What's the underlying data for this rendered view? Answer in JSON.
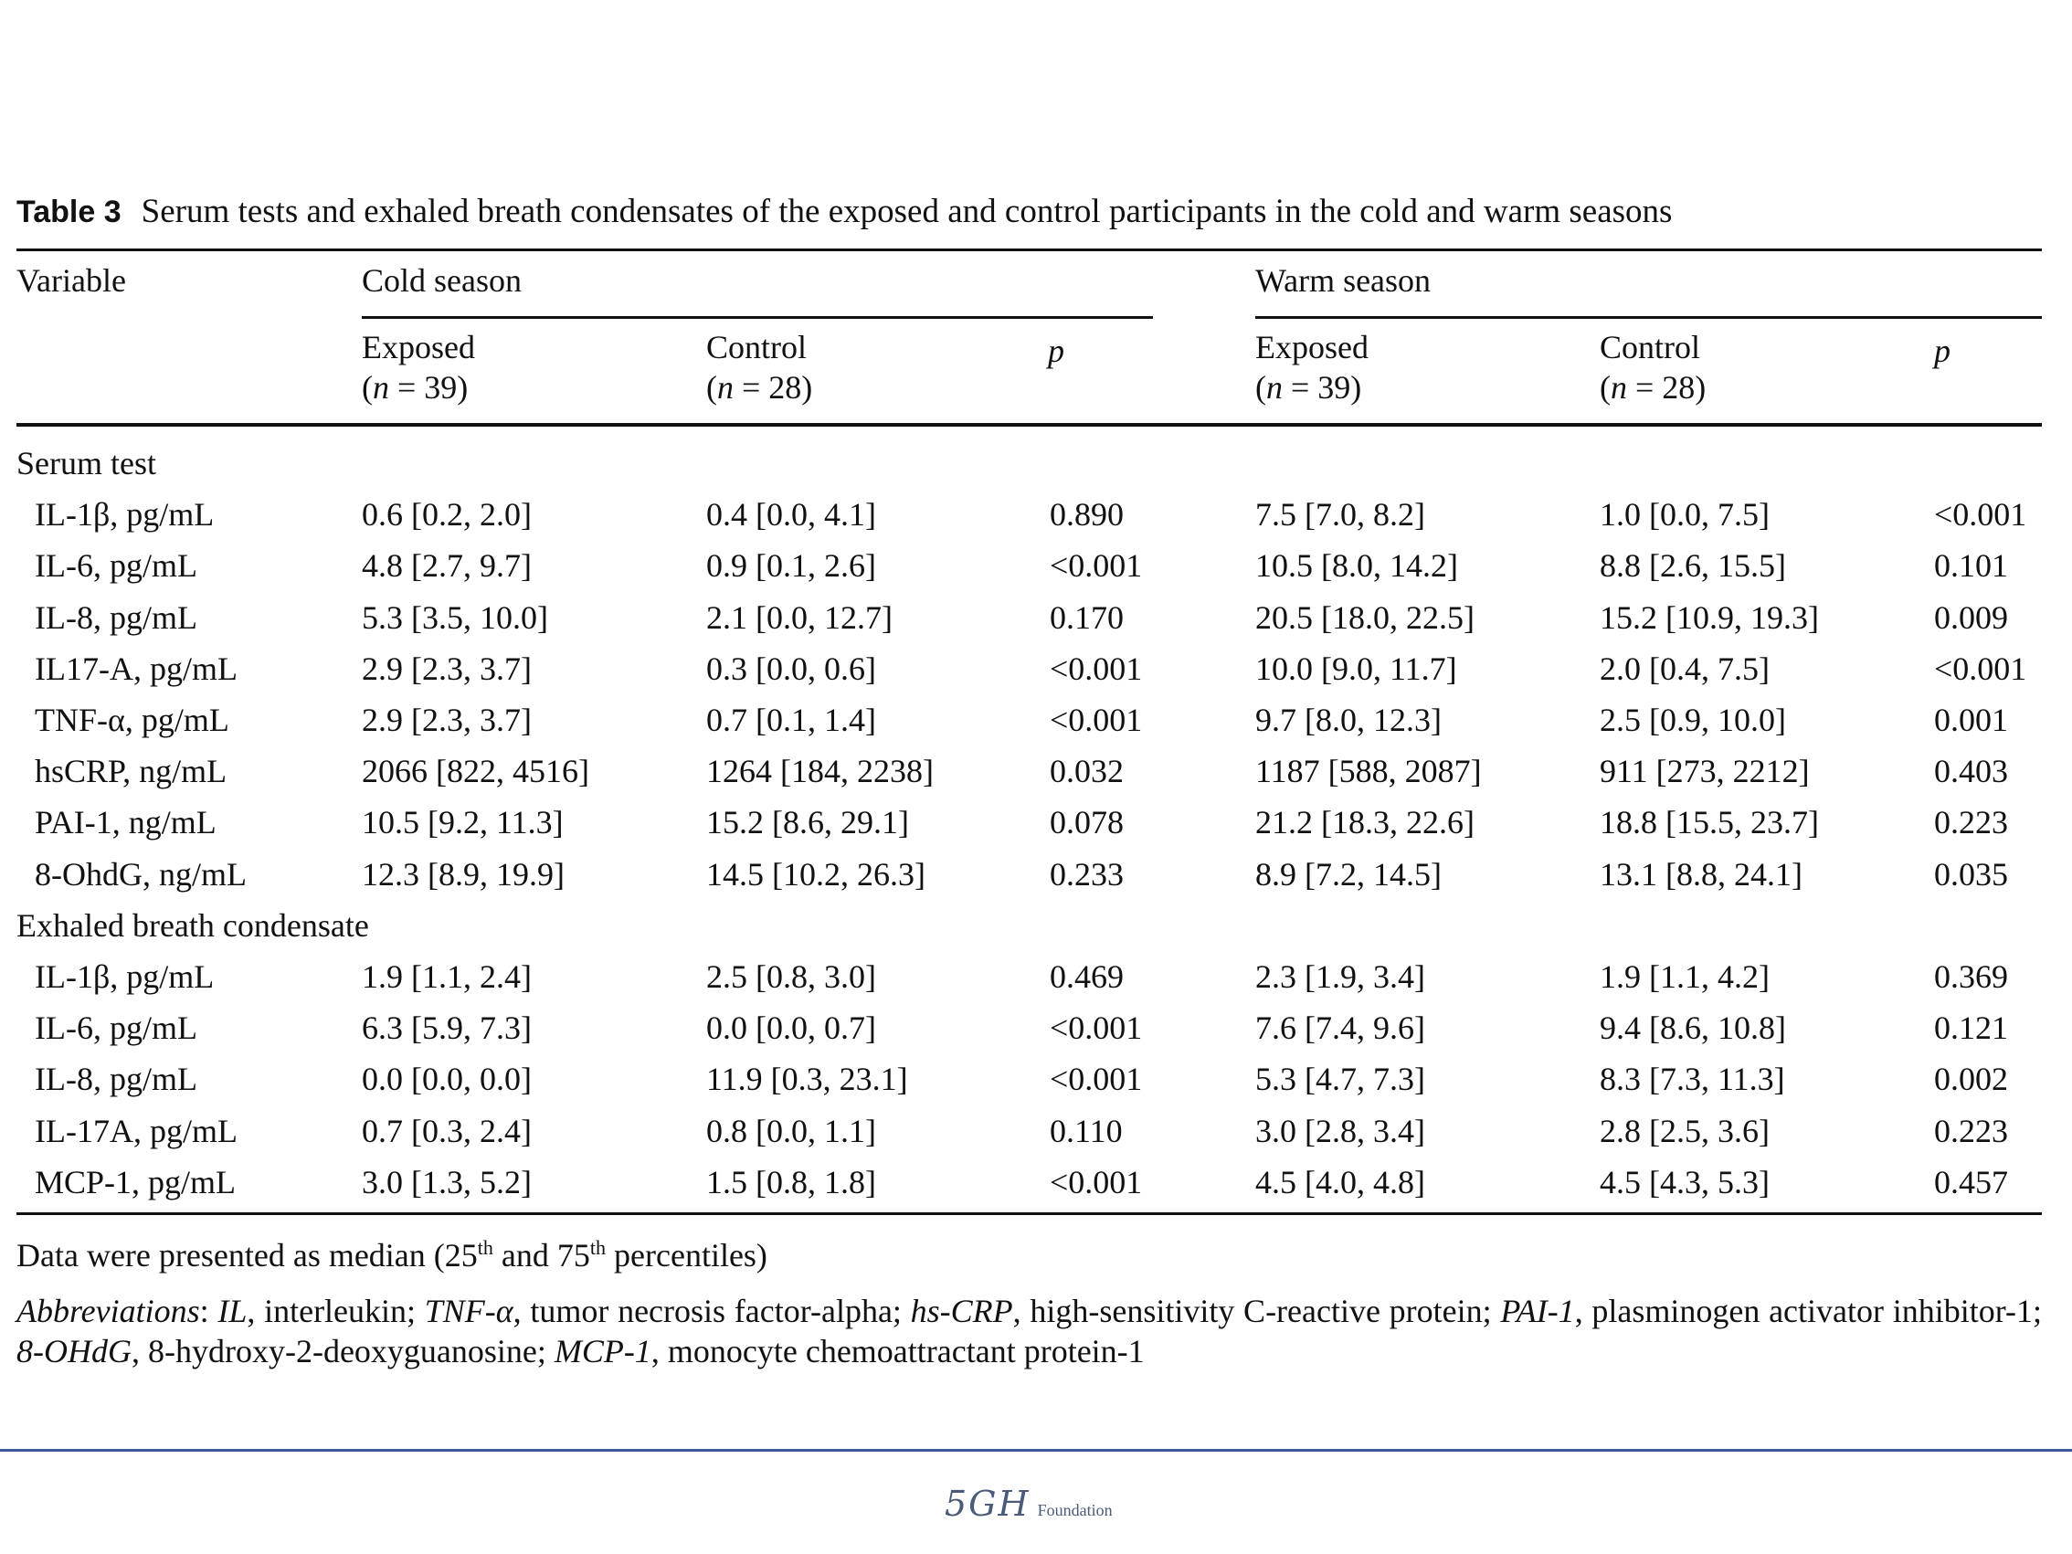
{
  "caption": {
    "label": "Table 3",
    "text": "Serum tests and exhaled breath condensates of the exposed and control participants in the cold and warm seasons"
  },
  "header": {
    "variable": "Variable",
    "cold_season": "Cold season",
    "warm_season": "Warm season",
    "exposed": "Exposed",
    "control": "Control",
    "p": "p",
    "exposed_n": "(n = 39)",
    "control_n": "(n = 28)"
  },
  "sections": [
    {
      "title": "Serum test",
      "rows": [
        {
          "variable": "IL-1β, pg/mL",
          "cold_exposed": "0.6 [0.2, 2.0]",
          "cold_control": "0.4 [0.0, 4.1]",
          "cold_p": "0.890",
          "warm_exposed": "7.5 [7.0, 8.2]",
          "warm_control": "1.0 [0.0, 7.5]",
          "warm_p": "<0.001"
        },
        {
          "variable": "IL-6, pg/mL",
          "cold_exposed": "4.8 [2.7, 9.7]",
          "cold_control": "0.9 [0.1, 2.6]",
          "cold_p": "<0.001",
          "warm_exposed": "10.5 [8.0, 14.2]",
          "warm_control": "8.8 [2.6, 15.5]",
          "warm_p": "0.101"
        },
        {
          "variable": "IL-8, pg/mL",
          "cold_exposed": "5.3 [3.5, 10.0]",
          "cold_control": "2.1 [0.0, 12.7]",
          "cold_p": "0.170",
          "warm_exposed": "20.5 [18.0, 22.5]",
          "warm_control": "15.2 [10.9, 19.3]",
          "warm_p": "0.009"
        },
        {
          "variable": "IL17-A, pg/mL",
          "cold_exposed": "2.9 [2.3, 3.7]",
          "cold_control": "0.3 [0.0, 0.6]",
          "cold_p": "<0.001",
          "warm_exposed": "10.0 [9.0, 11.7]",
          "warm_control": "2.0 [0.4, 7.5]",
          "warm_p": "<0.001"
        },
        {
          "variable": "TNF-α, pg/mL",
          "cold_exposed": "2.9 [2.3, 3.7]",
          "cold_control": "0.7 [0.1, 1.4]",
          "cold_p": "<0.001",
          "warm_exposed": "9.7 [8.0, 12.3]",
          "warm_control": "2.5 [0.9, 10.0]",
          "warm_p": "0.001"
        },
        {
          "variable": "hsCRP, ng/mL",
          "cold_exposed": "2066 [822, 4516]",
          "cold_control": "1264 [184, 2238]",
          "cold_p": "0.032",
          "warm_exposed": "1187 [588, 2087]",
          "warm_control": "911 [273, 2212]",
          "warm_p": "0.403"
        },
        {
          "variable": "PAI-1, ng/mL",
          "cold_exposed": "10.5 [9.2, 11.3]",
          "cold_control": "15.2 [8.6, 29.1]",
          "cold_p": "0.078",
          "warm_exposed": "21.2 [18.3, 22.6]",
          "warm_control": "18.8 [15.5, 23.7]",
          "warm_p": "0.223"
        },
        {
          "variable": "8-OhdG, ng/mL",
          "cold_exposed": "12.3 [8.9, 19.9]",
          "cold_control": "14.5 [10.2, 26.3]",
          "cold_p": "0.233",
          "warm_exposed": "8.9 [7.2, 14.5]",
          "warm_control": "13.1 [8.8, 24.1]",
          "warm_p": "0.035"
        }
      ]
    },
    {
      "title": "Exhaled breath condensate",
      "rows": [
        {
          "variable": "IL-1β, pg/mL",
          "cold_exposed": "1.9 [1.1, 2.4]",
          "cold_control": "2.5 [0.8, 3.0]",
          "cold_p": "0.469",
          "warm_exposed": "2.3 [1.9, 3.4]",
          "warm_control": "1.9 [1.1, 4.2]",
          "warm_p": "0.369"
        },
        {
          "variable": "IL-6, pg/mL",
          "cold_exposed": "6.3 [5.9, 7.3]",
          "cold_control": "0.0 [0.0, 0.7]",
          "cold_p": "<0.001",
          "warm_exposed": "7.6 [7.4, 9.6]",
          "warm_control": "9.4 [8.6, 10.8]",
          "warm_p": "0.121"
        },
        {
          "variable": "IL-8, pg/mL",
          "cold_exposed": "0.0 [0.0, 0.0]",
          "cold_control": "11.9 [0.3, 23.1]",
          "cold_p": "<0.001",
          "warm_exposed": "5.3 [4.7, 7.3]",
          "warm_control": "8.3 [7.3, 11.3]",
          "warm_p": "0.002"
        },
        {
          "variable": "IL-17A, pg/mL",
          "cold_exposed": "0.7 [0.3, 2.4]",
          "cold_control": "0.8 [0.0, 1.1]",
          "cold_p": "0.110",
          "warm_exposed": "3.0 [2.8, 3.4]",
          "warm_control": "2.8 [2.5, 3.6]",
          "warm_p": "0.223"
        },
        {
          "variable": "MCP-1, pg/mL",
          "cold_exposed": "3.0 [1.3, 5.2]",
          "cold_control": "1.5 [0.8, 1.8]",
          "cold_p": "<0.001",
          "warm_exposed": "4.5 [4.0, 4.8]",
          "warm_control": "4.5 [4.3, 5.3]",
          "warm_p": "0.457"
        }
      ]
    }
  ],
  "note": {
    "prefix": "Data were presented as median (25",
    "sup1": "th",
    "middle": " and 75",
    "sup2": "th",
    "suffix": " percentiles)"
  },
  "abbreviations": [
    {
      "term": "Abbreviations",
      "def": ": "
    },
    {
      "term": "IL",
      "def": ", interleukin; "
    },
    {
      "term": "TNF-α",
      "def": ", tumor necrosis factor-alpha; "
    },
    {
      "term": "hs-CRP",
      "def": ", high-sensitivity C-reactive protein; "
    },
    {
      "term": "PAI-1",
      "def": ", plasminogen activator inhibitor-1; "
    },
    {
      "term": "8-OHdG",
      "def": ", 8-hydroxy-2-deoxyguanosine; "
    },
    {
      "term": "MCP-1",
      "def": ", monocyte chemoattractant protein-1"
    }
  ],
  "footer": {
    "logo_mark": "5GH",
    "logo_word": "Foundation",
    "accent_color": "#3a5a9a"
  }
}
